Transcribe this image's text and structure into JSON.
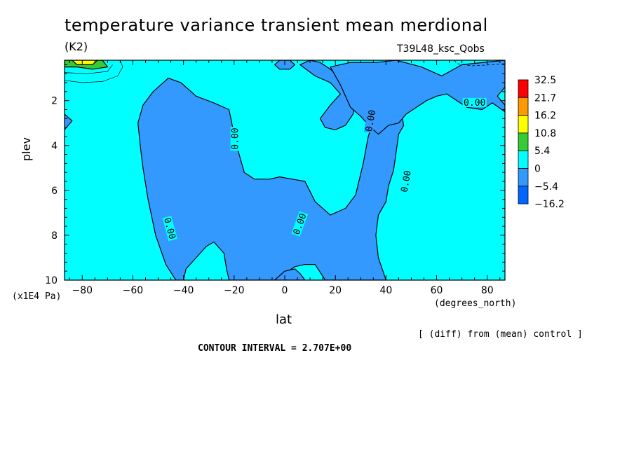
{
  "chart_data": {
    "type": "heatmap",
    "title": "temperature variance transient mean merdional",
    "units_label": "(K2)",
    "run_label": "T39L48_ksc_Qobs",
    "xlabel": "lat",
    "x_unit": "(degrees_north)",
    "ylabel": "plev",
    "y_unit": "(x1E4 Pa)",
    "x_ticks": [
      -80,
      -60,
      -40,
      -20,
      0,
      20,
      40,
      60,
      80
    ],
    "y_ticks": [
      2,
      4,
      6,
      8,
      10
    ],
    "xlim": [
      -87,
      87
    ],
    "ylim": [
      0.2,
      10
    ],
    "y_inverted": true,
    "contour_label": "0.00",
    "contour_interval_text": "CONTOUR INTERVAL = 2.707E+00",
    "diff_note": "[ (diff) from (mean) control ]",
    "colorbar": {
      "labels": [
        "32.5",
        "21.7",
        "16.2",
        "10.8",
        "5.4",
        "0",
        "-5.4",
        "-16.2"
      ],
      "colors": [
        "#ff0000",
        "#ff9900",
        "#ffff00",
        "#33cc33",
        "#00ffff",
        "#3399ff",
        "#0066ff"
      ]
    },
    "background_color": "#00ffff",
    "negative_color": "#3399ff",
    "regions": [
      {
        "name": "central-negative-region",
        "level": "-5.4..0",
        "polygon": [
          [
            -58,
            3.0
          ],
          [
            -56,
            2.2
          ],
          [
            -52,
            1.6
          ],
          [
            -46,
            1.0
          ],
          [
            -41,
            1.2
          ],
          [
            -35,
            1.8
          ],
          [
            -28,
            2.1
          ],
          [
            -22,
            2.4
          ],
          [
            -20,
            3.5
          ],
          [
            -18,
            4.4
          ],
          [
            -16,
            5.2
          ],
          [
            -12,
            5.5
          ],
          [
            -6,
            5.5
          ],
          [
            -2,
            5.4
          ],
          [
            8,
            5.6
          ],
          [
            12,
            6.5
          ],
          [
            18,
            7.1
          ],
          [
            24,
            6.8
          ],
          [
            28,
            6.2
          ],
          [
            31,
            4.8
          ],
          [
            33,
            3.6
          ],
          [
            35,
            2.9
          ],
          [
            38,
            2.5
          ],
          [
            42,
            2.3
          ],
          [
            46,
            2.5
          ],
          [
            47,
            3.1
          ],
          [
            45,
            3.5
          ],
          [
            44,
            4.3
          ],
          [
            43,
            5.1
          ],
          [
            41,
            5.8
          ],
          [
            40,
            6.5
          ],
          [
            37,
            7.1
          ],
          [
            36,
            8.0
          ],
          [
            37,
            9.0
          ],
          [
            40,
            10.0
          ],
          [
            16,
            10.0
          ],
          [
            12,
            9.3
          ],
          [
            8,
            9.3
          ],
          [
            4,
            9.4
          ],
          [
            0,
            9.7
          ],
          [
            -2,
            10.0
          ],
          [
            -22,
            10.0
          ],
          [
            -23,
            9.5
          ],
          [
            -24,
            8.8
          ],
          [
            -28,
            8.3
          ],
          [
            -31,
            8.5
          ],
          [
            -35,
            9.0
          ],
          [
            -39,
            9.5
          ],
          [
            -40,
            10.0
          ],
          [
            -43,
            10.0
          ],
          [
            -47,
            9.3
          ],
          [
            -51,
            8.0
          ],
          [
            -54,
            6.4
          ],
          [
            -56,
            5.0
          ],
          [
            -57,
            4.1
          ]
        ]
      },
      {
        "name": "northern-negative-region",
        "level": "-5.4..0",
        "polygon": [
          [
            6,
            0.4
          ],
          [
            10,
            0.2
          ],
          [
            14,
            0.3
          ],
          [
            18,
            0.6
          ],
          [
            22,
            1.0
          ],
          [
            26,
            1.5
          ],
          [
            28,
            2.1
          ],
          [
            27,
            2.6
          ],
          [
            24,
            3.1
          ],
          [
            20,
            3.3
          ],
          [
            16,
            3.2
          ],
          [
            14,
            2.8
          ],
          [
            18,
            2.2
          ],
          [
            22,
            1.7
          ],
          [
            18,
            1.2
          ],
          [
            12,
            0.9
          ]
        ]
      },
      {
        "name": "east-negative-region",
        "level": "-5.4..0",
        "polygon": [
          [
            18,
            0.5
          ],
          [
            26,
            0.3
          ],
          [
            36,
            0.3
          ],
          [
            44,
            0.2
          ],
          [
            54,
            0.5
          ],
          [
            62,
            0.9
          ],
          [
            70,
            0.4
          ],
          [
            87,
            0.2
          ],
          [
            87,
            1.4
          ],
          [
            84,
            1.8
          ],
          [
            87,
            2.2
          ],
          [
            87,
            2.5
          ],
          [
            82,
            2.1
          ],
          [
            78,
            2.4
          ],
          [
            72,
            2.3
          ],
          [
            68,
            2.0
          ],
          [
            64,
            1.7
          ],
          [
            60,
            1.8
          ],
          [
            56,
            2.0
          ],
          [
            52,
            2.3
          ],
          [
            48,
            2.6
          ],
          [
            45,
            3.0
          ],
          [
            41,
            3.1
          ],
          [
            37,
            3.5
          ],
          [
            34,
            3.2
          ],
          [
            30,
            2.7
          ],
          [
            26,
            2.3
          ],
          [
            24,
            1.8
          ],
          [
            22,
            1.3
          ],
          [
            20,
            0.9
          ]
        ]
      },
      {
        "name": "cap-negative-region",
        "level": "-5.4..0",
        "polygon": [
          [
            -4,
            0.4
          ],
          [
            -2,
            0.2
          ],
          [
            2,
            0.2
          ],
          [
            4,
            0.4
          ],
          [
            2,
            0.6
          ],
          [
            -2,
            0.6
          ]
        ]
      },
      {
        "name": "edge-negative-region",
        "level": "-5.4..0",
        "polygon": [
          [
            -87,
            2.6
          ],
          [
            -84,
            2.9
          ],
          [
            -87,
            3.3
          ]
        ]
      },
      {
        "name": "bottom-negative-region",
        "level": "-5.4..0",
        "polygon": [
          [
            -4,
            10.0
          ],
          [
            0,
            9.6
          ],
          [
            4,
            9.5
          ],
          [
            6,
            9.7
          ],
          [
            8,
            10.0
          ]
        ]
      },
      {
        "name": "cap-warm-region",
        "level": "5.4..10.8",
        "polygon": [
          [
            -87,
            0.2
          ],
          [
            -72,
            0.2
          ],
          [
            -70,
            0.5
          ],
          [
            -76,
            0.6
          ],
          [
            -82,
            0.5
          ],
          [
            -87,
            0.5
          ]
        ]
      },
      {
        "name": "cap-yellow-region",
        "level": "10.8..16.2",
        "polygon": [
          [
            -84,
            0.2
          ],
          [
            -74,
            0.2
          ],
          [
            -76,
            0.4
          ],
          [
            -82,
            0.4
          ]
        ]
      }
    ]
  }
}
